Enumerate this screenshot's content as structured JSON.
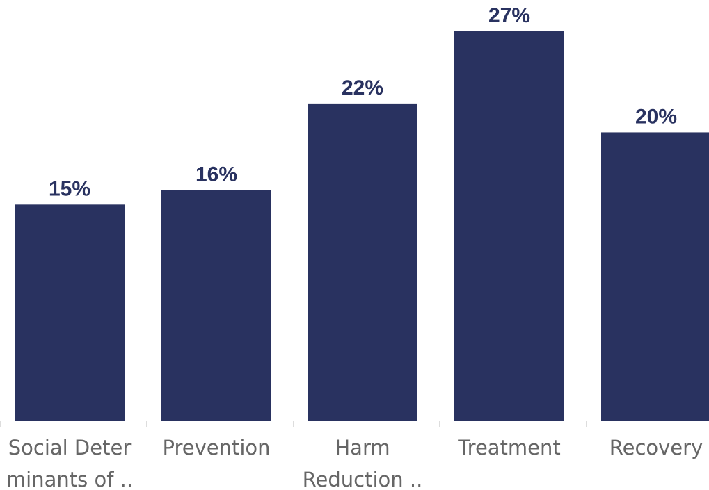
{
  "chart_data": {
    "type": "bar",
    "categories": [
      [
        "Social Deter",
        "minants of .."
      ],
      [
        "Prevention"
      ],
      [
        "Harm",
        "Reduction .."
      ],
      [
        "Treatment"
      ],
      [
        "Recovery"
      ]
    ],
    "values": [
      15,
      16,
      22,
      27,
      20
    ],
    "value_labels": [
      "15%",
      "16%",
      "22%",
      "27%",
      "20%"
    ],
    "ylim": [
      0,
      27
    ],
    "grid": false,
    "legend": "none",
    "colors": {
      "bar": "#293260",
      "value_text": "#293260",
      "category_text": "#666666",
      "axis_tick": "#dddddd"
    }
  }
}
